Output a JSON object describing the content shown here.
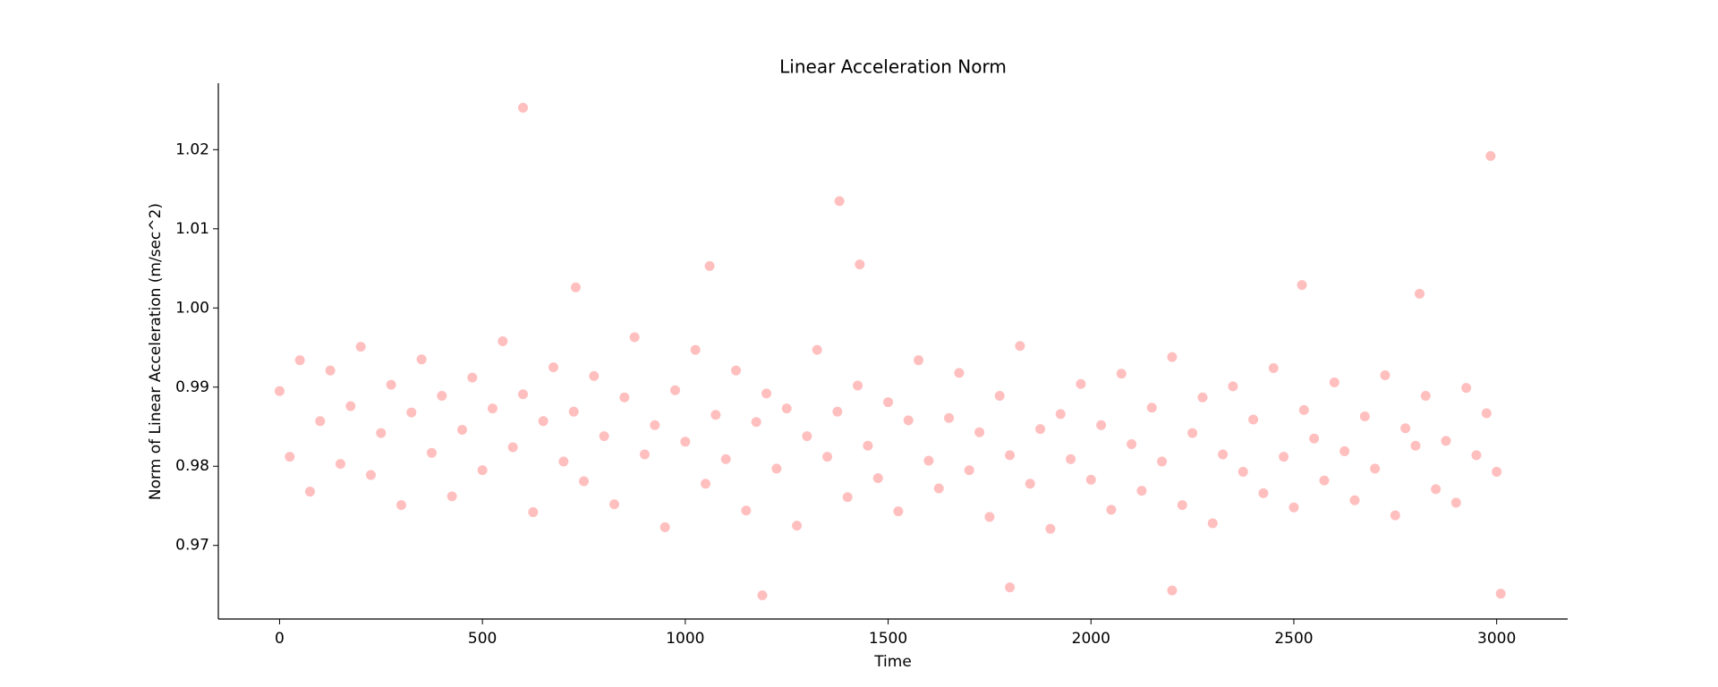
{
  "chart_data": {
    "type": "scatter",
    "title": "Linear Acceleration Norm",
    "x_label": "Time",
    "y_label": "Norm of Linear Acceleration (m/sec^2)",
    "color": "#ff8a8a",
    "x": [
      0,
      25,
      50,
      75,
      100,
      125,
      150,
      175,
      200,
      225,
      250,
      275,
      300,
      325,
      350,
      375,
      400,
      425,
      450,
      475,
      500,
      525,
      550,
      575,
      600,
      625,
      650,
      675,
      700,
      725,
      750,
      775,
      800,
      825,
      850,
      875,
      900,
      925,
      950,
      975,
      1000,
      1025,
      1050,
      1075,
      1100,
      1125,
      1150,
      1175,
      1200,
      1225,
      1250,
      1275,
      1300,
      1325,
      1350,
      1375,
      1400,
      1425,
      1450,
      1475,
      1500,
      1525,
      1550,
      1575,
      1600,
      1625,
      1650,
      1675,
      1700,
      1725,
      1750,
      1775,
      1800,
      1825,
      1850,
      1875,
      1900,
      1925,
      1950,
      1975,
      2000,
      2025,
      2050,
      2075,
      2100,
      2125,
      2150,
      2175,
      2200,
      2225,
      2250,
      2275,
      2300,
      2325,
      2350,
      2375,
      2400,
      2425,
      2450,
      2475,
      2500,
      2525,
      2550,
      2575,
      2600,
      2625,
      2650,
      2675,
      2700,
      2725,
      2750,
      2775,
      2800,
      2825,
      2850,
      2875,
      2900,
      2925,
      2950,
      2975,
      3000,
      600,
      1060,
      1190,
      1380,
      1430,
      1800,
      2200,
      2520,
      2985,
      3010,
      730,
      2810
    ],
    "values": [
      0.9895,
      0.9812,
      0.9934,
      0.9768,
      0.9857,
      0.9921,
      0.9803,
      0.9876,
      0.9951,
      0.9789,
      0.9842,
      0.9903,
      0.9751,
      0.9868,
      0.9935,
      0.9817,
      0.9889,
      0.9762,
      0.9846,
      0.9912,
      0.9795,
      0.9873,
      0.9958,
      0.9824,
      0.9891,
      0.9742,
      0.9857,
      0.9925,
      0.9806,
      0.9869,
      0.9781,
      0.9914,
      0.9838,
      0.9752,
      0.9887,
      0.9963,
      0.9815,
      0.9852,
      0.9723,
      0.9896,
      0.9831,
      0.9947,
      0.9778,
      0.9865,
      0.9809,
      0.9921,
      0.9744,
      0.9856,
      0.9892,
      0.9797,
      0.9873,
      0.9725,
      0.9838,
      0.9947,
      0.9812,
      0.9869,
      0.9761,
      0.9902,
      0.9826,
      0.9785,
      0.9881,
      0.9743,
      0.9858,
      0.9934,
      0.9807,
      0.9772,
      0.9861,
      0.9918,
      0.9795,
      0.9843,
      0.9736,
      0.9889,
      0.9814,
      0.9952,
      0.9778,
      0.9847,
      0.9721,
      0.9866,
      0.9809,
      0.9904,
      0.9783,
      0.9852,
      0.9745,
      0.9917,
      0.9828,
      0.9769,
      0.9874,
      0.9806,
      0.9938,
      0.9751,
      0.9842,
      0.9887,
      0.9728,
      0.9815,
      0.9901,
      0.9793,
      0.9859,
      0.9766,
      0.9924,
      0.9812,
      0.9748,
      0.9871,
      0.9835,
      0.9782,
      0.9906,
      0.9819,
      0.9757,
      0.9863,
      0.9797,
      0.9915,
      0.9738,
      0.9848,
      0.9826,
      0.9889,
      0.9771,
      0.9832,
      0.9754,
      0.9899,
      0.9814,
      0.9867,
      0.9793,
      1.0253,
      1.0053,
      0.9637,
      1.0135,
      1.0055,
      0.9647,
      0.9643,
      1.0029,
      1.0192,
      0.9639,
      1.0026,
      1.0018
    ],
    "xlim": [
      -151,
      3175
    ],
    "ylim": [
      0.9607,
      1.0284
    ],
    "xticks": [
      0,
      500,
      1000,
      1500,
      2000,
      2500,
      3000
    ],
    "yticks": [
      0.97,
      0.98,
      0.99,
      {
        "value": 1,
        "label": "1.00"
      },
      1.01,
      1.02
    ]
  }
}
